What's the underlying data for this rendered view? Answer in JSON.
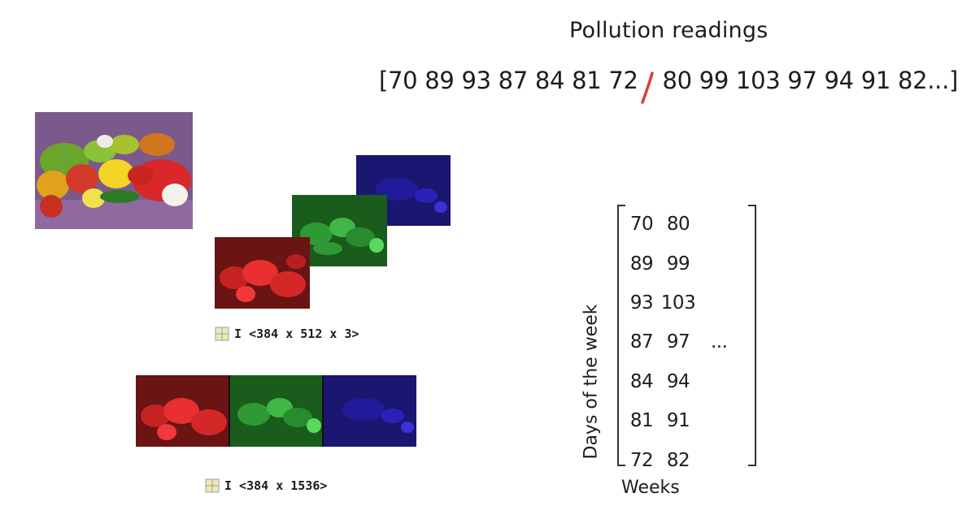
{
  "header": {
    "title": "Pollution readings",
    "sequence_part1": "[70 89 93 87 84 81 72",
    "sequence_part2": "80 99  103 97 94 91 82...]"
  },
  "images": {
    "original_alt": "peppers",
    "channel_colors": {
      "red": "#d81e1e",
      "green": "#1ea52c",
      "blue": "#2020c8"
    },
    "label_3d": "I <384 x 512 x 3>",
    "label_2d": "I <384 x 1536>"
  },
  "matrix": {
    "ylabel": "Days of the week",
    "xlabel": "Weeks",
    "rows": [
      [
        "70",
        "80",
        ""
      ],
      [
        "89",
        "99",
        ""
      ],
      [
        "93",
        "103",
        ""
      ],
      [
        "87",
        "97",
        "..."
      ],
      [
        "84",
        "94",
        ""
      ],
      [
        "81",
        "91",
        ""
      ],
      [
        "72",
        "82",
        ""
      ]
    ]
  }
}
